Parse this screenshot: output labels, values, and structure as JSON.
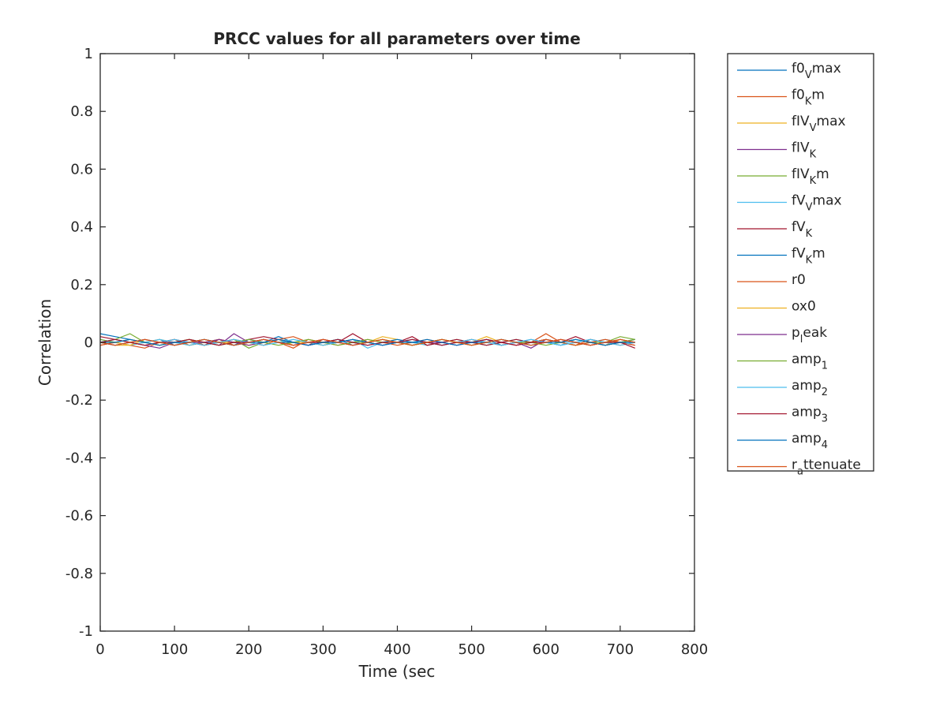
{
  "chart_data": {
    "type": "line",
    "title": "PRCC values for all parameters over time",
    "xlabel": "Time (sec",
    "ylabel": "Correlation",
    "xlim": [
      0,
      800
    ],
    "ylim": [
      -1,
      1
    ],
    "xticks": [
      0,
      100,
      200,
      300,
      400,
      500,
      600,
      700,
      800
    ],
    "yticks": [
      -1,
      -0.8,
      -0.6,
      -0.4,
      -0.2,
      0,
      0.2,
      0.4,
      0.6,
      0.8,
      1
    ],
    "grid": false,
    "legend_position": "outside-right",
    "x": [
      0,
      20,
      40,
      60,
      80,
      100,
      120,
      140,
      160,
      180,
      200,
      220,
      240,
      260,
      280,
      300,
      320,
      340,
      360,
      380,
      400,
      420,
      440,
      460,
      480,
      500,
      520,
      540,
      560,
      580,
      600,
      620,
      640,
      660,
      680,
      700,
      720
    ],
    "series": [
      {
        "name": "f0_V max",
        "base": "f0",
        "sub": "V",
        "rest": "max",
        "color": "#0072BD",
        "values": [
          0.03,
          0.02,
          0.01,
          0.0,
          0.01,
          -0.01,
          0.0,
          0.01,
          0.0,
          -0.01,
          0.01,
          0.0,
          0.02,
          0.0,
          -0.01,
          0.0,
          0.01,
          -0.01,
          0.0,
          0.01,
          0.0,
          -0.01,
          0.0,
          0.01,
          0.0,
          0.0,
          0.01,
          -0.01,
          0.0,
          0.0,
          0.01,
          0.0,
          -0.01,
          0.0,
          0.01,
          0.0,
          0.0
        ]
      },
      {
        "name": "f0_K m",
        "base": "f0",
        "sub": "K",
        "rest": "m",
        "color": "#D95319",
        "values": [
          -0.01,
          0.0,
          -0.01,
          -0.02,
          0.0,
          0.01,
          -0.01,
          0.0,
          0.01,
          -0.01,
          0.0,
          0.01,
          0.0,
          -0.02,
          0.01,
          0.0,
          -0.01,
          0.0,
          0.01,
          0.0,
          -0.01,
          0.0,
          0.01,
          0.0,
          -0.01,
          0.0,
          0.01,
          0.0,
          -0.01,
          0.0,
          0.03,
          0.0,
          -0.01,
          0.01,
          0.0,
          -0.01,
          0.0
        ]
      },
      {
        "name": "fIV_V max",
        "base": "fIV",
        "sub": "V",
        "rest": "max",
        "color": "#EDB120",
        "values": [
          0.0,
          -0.01,
          -0.01,
          0.0,
          0.01,
          0.0,
          -0.01,
          0.0,
          0.01,
          0.0,
          -0.01,
          0.0,
          0.01,
          -0.01,
          0.0,
          0.01,
          0.0,
          -0.01,
          0.0,
          0.02,
          0.01,
          0.0,
          -0.01,
          0.0,
          0.01,
          0.0,
          0.02,
          0.0,
          -0.01,
          0.0,
          0.01,
          0.0,
          -0.01,
          0.0,
          -0.01,
          0.01,
          0.0
        ]
      },
      {
        "name": "fIV_K",
        "base": "fIV",
        "sub": "K",
        "rest": "",
        "color": "#7E2F8E",
        "values": [
          0.0,
          0.01,
          0.0,
          -0.01,
          -0.02,
          0.0,
          0.01,
          0.0,
          -0.01,
          0.03,
          0.0,
          0.01,
          0.0,
          -0.01,
          0.0,
          0.01,
          0.0,
          -0.01,
          0.0,
          0.01,
          0.0,
          -0.01,
          0.0,
          0.01,
          0.0,
          -0.01,
          0.0,
          0.01,
          0.0,
          -0.02,
          0.01,
          0.0,
          0.01,
          0.0,
          -0.01,
          0.0,
          0.01
        ]
      },
      {
        "name": "fIV_K m",
        "base": "fIV",
        "sub": "K",
        "rest": "m",
        "color": "#77AC30",
        "values": [
          0.0,
          0.01,
          0.03,
          0.0,
          -0.01,
          0.0,
          0.01,
          -0.01,
          0.0,
          0.01,
          -0.02,
          0.0,
          0.01,
          0.0,
          -0.01,
          0.0,
          0.01,
          0.0,
          0.0,
          0.01,
          0.0,
          -0.01,
          0.0,
          0.01,
          0.0,
          0.0,
          -0.01,
          0.0,
          0.01,
          0.0,
          0.01,
          0.0,
          -0.01,
          0.0,
          0.0,
          0.02,
          0.01
        ]
      },
      {
        "name": "fV_V max",
        "base": "fV",
        "sub": "V",
        "rest": "max",
        "color": "#4DBEEE",
        "values": [
          0.01,
          0.0,
          -0.01,
          0.0,
          0.01,
          0.0,
          -0.01,
          0.0,
          0.0,
          0.01,
          0.0,
          -0.01,
          0.0,
          0.01,
          0.0,
          -0.01,
          0.0,
          0.01,
          -0.02,
          0.0,
          0.01,
          0.0,
          -0.01,
          0.0,
          0.01,
          0.0,
          -0.01,
          0.0,
          0.01,
          0.0,
          0.0,
          -0.01,
          0.01,
          0.0,
          -0.01,
          0.0,
          0.0
        ]
      },
      {
        "name": "fV_K",
        "base": "fV",
        "sub": "K",
        "rest": "",
        "color": "#A2142F",
        "values": [
          0.02,
          0.01,
          0.0,
          -0.01,
          0.0,
          0.01,
          0.0,
          -0.01,
          0.01,
          0.0,
          0.01,
          0.02,
          0.01,
          0.0,
          -0.01,
          0.01,
          0.0,
          0.03,
          0.0,
          -0.01,
          0.0,
          0.02,
          -0.01,
          0.0,
          0.01,
          0.0,
          -0.01,
          0.0,
          0.01,
          0.0,
          0.01,
          0.0,
          0.02,
          0.0,
          -0.01,
          0.0,
          -0.01
        ]
      },
      {
        "name": "fV_K m",
        "base": "fV",
        "sub": "K",
        "rest": "m",
        "color": "#0072BD",
        "values": [
          0.0,
          -0.01,
          0.0,
          0.01,
          0.0,
          -0.01,
          0.0,
          0.01,
          0.0,
          -0.01,
          0.0,
          0.01,
          0.0,
          0.0,
          -0.01,
          0.0,
          0.01,
          0.0,
          -0.01,
          0.0,
          0.01,
          0.0,
          0.0,
          -0.01,
          0.0,
          0.01,
          0.0,
          -0.01,
          0.0,
          0.01,
          0.0,
          -0.01,
          0.0,
          0.01,
          0.0,
          0.0,
          0.01
        ]
      },
      {
        "name": "r0",
        "base": "r0",
        "sub": "",
        "rest": "",
        "color": "#D95319",
        "values": [
          -0.01,
          0.0,
          0.01,
          0.0,
          -0.01,
          0.0,
          0.01,
          -0.01,
          0.0,
          0.01,
          0.0,
          -0.01,
          0.01,
          0.02,
          0.0,
          -0.01,
          0.0,
          0.01,
          0.0,
          -0.01,
          0.0,
          0.01,
          0.0,
          -0.01,
          0.0,
          0.01,
          0.0,
          -0.01,
          0.0,
          0.0,
          0.01,
          0.0,
          -0.01,
          0.0,
          0.01,
          0.0,
          -0.01
        ]
      },
      {
        "name": "ox0",
        "base": "ox0",
        "sub": "",
        "rest": "",
        "color": "#EDB120",
        "values": [
          0.0,
          0.0,
          -0.01,
          0.01,
          0.0,
          -0.01,
          0.0,
          0.01,
          0.0,
          0.0,
          -0.01,
          0.0,
          0.01,
          0.0,
          0.0,
          -0.01,
          0.0,
          0.01,
          0.0,
          0.01,
          0.0,
          -0.01,
          0.0,
          0.01,
          0.0,
          -0.01,
          0.0,
          0.01,
          0.0,
          -0.01,
          0.0,
          0.01,
          0.0,
          -0.01,
          0.0,
          0.01,
          0.0
        ]
      },
      {
        "name": "p_l eak",
        "base": "p",
        "sub": "l",
        "rest": "eak",
        "color": "#7E2F8E",
        "values": [
          0.0,
          -0.01,
          0.0,
          0.01,
          0.0,
          -0.01,
          0.0,
          0.0,
          0.01,
          0.0,
          -0.01,
          0.0,
          0.01,
          0.0,
          -0.01,
          0.0,
          0.0,
          0.01,
          0.0,
          -0.01,
          0.0,
          0.01,
          0.0,
          0.0,
          -0.01,
          0.0,
          0.01,
          0.0,
          -0.01,
          0.0,
          0.0,
          0.01,
          0.0,
          -0.01,
          0.0,
          0.01,
          0.0
        ]
      },
      {
        "name": "amp_1",
        "base": "amp",
        "sub": "1",
        "rest": "",
        "color": "#77AC30",
        "values": [
          0.01,
          0.0,
          0.01,
          0.0,
          -0.01,
          0.0,
          0.01,
          0.0,
          -0.01,
          0.0,
          0.01,
          0.0,
          -0.01,
          0.0,
          0.01,
          0.0,
          -0.01,
          0.0,
          0.01,
          0.0,
          0.0,
          -0.01,
          0.0,
          0.01,
          0.0,
          -0.01,
          0.0,
          0.01,
          0.0,
          0.0,
          -0.01,
          0.0,
          0.01,
          0.0,
          -0.01,
          0.0,
          0.01
        ]
      },
      {
        "name": "amp_2",
        "base": "amp",
        "sub": "2",
        "rest": "",
        "color": "#4DBEEE",
        "values": [
          0.0,
          0.01,
          0.0,
          -0.01,
          0.0,
          0.01,
          0.0,
          -0.01,
          0.0,
          0.01,
          0.0,
          -0.01,
          0.0,
          0.01,
          0.0,
          -0.01,
          0.0,
          0.01,
          0.0,
          -0.01,
          0.0,
          0.01,
          0.0,
          -0.01,
          0.0,
          0.01,
          0.0,
          -0.01,
          0.0,
          0.01,
          0.0,
          -0.01,
          0.0,
          0.01,
          0.0,
          -0.01,
          0.0
        ]
      },
      {
        "name": "amp_3",
        "base": "amp",
        "sub": "3",
        "rest": "",
        "color": "#A2142F",
        "values": [
          0.0,
          0.01,
          0.0,
          -0.01,
          0.0,
          0.0,
          0.01,
          0.0,
          -0.01,
          0.0,
          0.0,
          0.01,
          0.0,
          -0.01,
          0.0,
          0.0,
          0.01,
          0.0,
          -0.01,
          0.0,
          0.0,
          0.01,
          0.0,
          -0.01,
          0.0,
          0.0,
          0.01,
          0.0,
          -0.01,
          0.0,
          0.0,
          0.01,
          0.0,
          -0.01,
          0.0,
          0.0,
          -0.02
        ]
      },
      {
        "name": "amp_4",
        "base": "amp",
        "sub": "4",
        "rest": "",
        "color": "#0072BD",
        "values": [
          0.0,
          0.0,
          0.01,
          0.0,
          -0.01,
          0.0,
          0.0,
          0.01,
          0.0,
          -0.01,
          0.0,
          0.0,
          0.01,
          0.0,
          -0.01,
          0.0,
          0.0,
          0.01,
          0.0,
          -0.01,
          0.0,
          0.0,
          0.01,
          0.0,
          -0.01,
          0.0,
          0.0,
          0.01,
          0.0,
          -0.01,
          0.0,
          0.0,
          0.01,
          0.0,
          -0.01,
          0.0,
          0.0
        ]
      },
      {
        "name": "r_a ttenuate",
        "base": "r",
        "sub": "a",
        "rest": "ttenuate",
        "color": "#D95319",
        "values": [
          0.0,
          -0.01,
          0.0,
          0.01,
          0.0,
          -0.01,
          0.0,
          0.01,
          0.0,
          -0.01,
          0.0,
          0.01,
          0.0,
          -0.01,
          0.0,
          0.01,
          0.0,
          -0.01,
          0.0,
          0.01,
          0.0,
          -0.01,
          0.0,
          0.01,
          0.0,
          -0.01,
          0.0,
          0.01,
          0.0,
          -0.01,
          0.0,
          0.01,
          0.0,
          -0.01,
          0.0,
          0.01,
          0.0
        ]
      }
    ]
  }
}
